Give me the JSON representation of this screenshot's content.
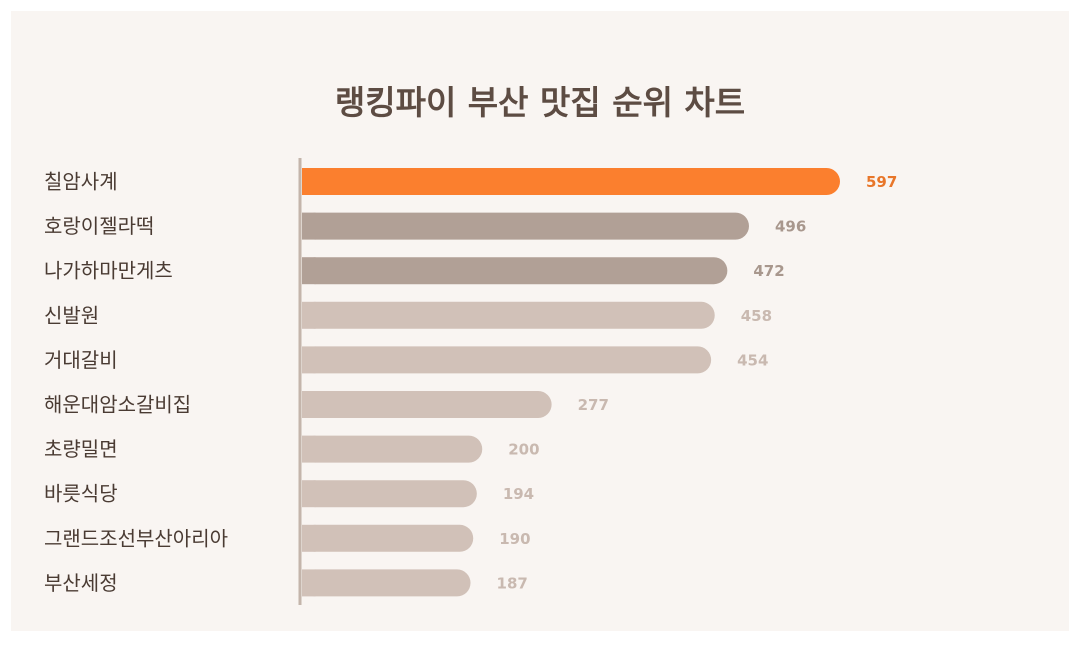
{
  "chart_data": {
    "type": "bar",
    "orientation": "horizontal",
    "title": "랭킹파이 부산 맛집 순위 차트",
    "categories": [
      "칠암사계",
      "호랑이젤라떡",
      "나가하마만게츠",
      "신발원",
      "거대갈비",
      "해운대암소갈비집",
      "초량밀면",
      "바릇식당",
      "그랜드조선부산아리아",
      "부산세정"
    ],
    "values": [
      597,
      496,
      472,
      458,
      454,
      277,
      200,
      194,
      190,
      187
    ],
    "grid": false,
    "legend": "none"
  },
  "colors": {
    "background": "#f9f5f2",
    "title": "#5d4c43",
    "label": "#4a3b33",
    "axis": "#c4b5ab",
    "bars": [
      "#fb7f2e",
      "#b1a096",
      "#b1a096",
      "#d1c1b8",
      "#d1c1b8",
      "#d1c1b8",
      "#d1c1b8",
      "#d1c1b8",
      "#d1c1b8",
      "#d1c1b8"
    ],
    "value_labels": [
      "#e8762a",
      "#a8978d",
      "#a8978d",
      "#c9b9b0",
      "#c9b9b0",
      "#c9b9b0",
      "#c9b9b0",
      "#c9b9b0",
      "#c9b9b0",
      "#c9b9b0"
    ]
  }
}
